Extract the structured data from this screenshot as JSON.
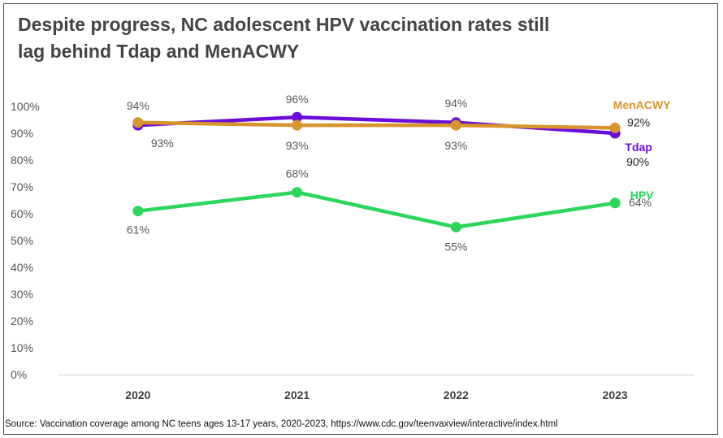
{
  "page": {
    "title_line1": "Despite progress, NC adolescent HPV vaccination rates still",
    "title_line2": "lag behind Tdap and MenACWY",
    "source": "Source: Vaccination coverage among NC teens ages 13-17 years, 2020-2023, https://www.cdc.gov/teenvaxview/interactive/index.html"
  },
  "chart_data": {
    "type": "line",
    "title": "Despite progress, NC adolescent HPV vaccination rates still lag behind Tdap and MenACWY",
    "xlabel": "",
    "ylabel": "",
    "categories": [
      "2020",
      "2021",
      "2022",
      "2023"
    ],
    "ylim": [
      0,
      100
    ],
    "yticks": [
      "0%",
      "10%",
      "20%",
      "30%",
      "40%",
      "50%",
      "60%",
      "70%",
      "80%",
      "90%",
      "100%"
    ],
    "grid": false,
    "legend": "direct labels at right",
    "series": [
      {
        "name": "Tdap",
        "color": "#6A0DD8",
        "values": [
          93,
          96,
          94,
          90
        ]
      },
      {
        "name": "MenACWY",
        "color": "#D9952D",
        "values": [
          94,
          93,
          93,
          92
        ]
      },
      {
        "name": "HPV",
        "color": "#2BD65A",
        "values": [
          61,
          68,
          55,
          64
        ]
      }
    ],
    "data_labels": {
      "Tdap": [
        "93%",
        "96%",
        "94%",
        "90%"
      ],
      "MenACWY": [
        "94%",
        "93%",
        "93%",
        "92%"
      ],
      "HPV": [
        "61%",
        "68%",
        "55%",
        "64%"
      ]
    }
  }
}
